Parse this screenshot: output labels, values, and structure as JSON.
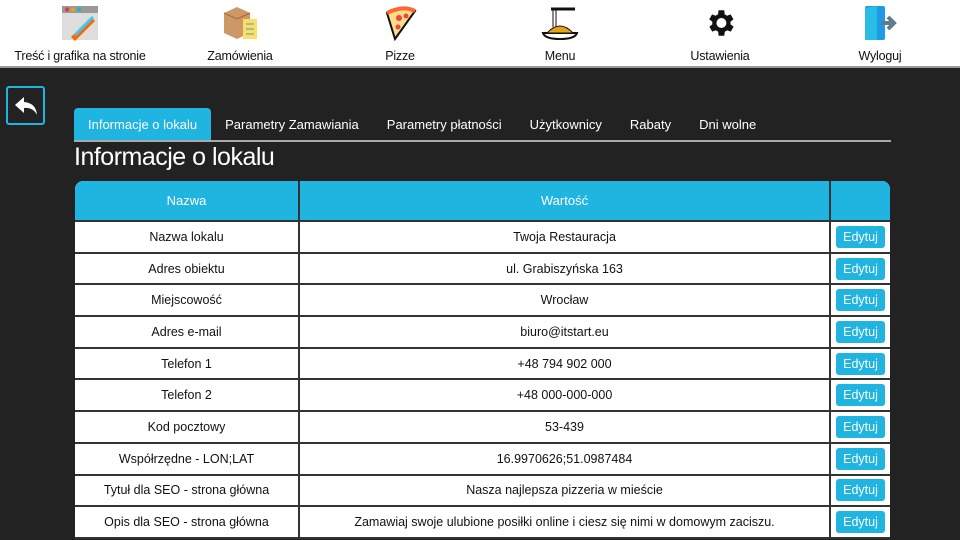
{
  "nav": [
    {
      "label": "Treść i grafika na stronie",
      "icon": "content-graphics-icon"
    },
    {
      "label": "Zamówienia",
      "icon": "orders-box-icon"
    },
    {
      "label": "Pizze",
      "icon": "pizza-icon"
    },
    {
      "label": "Menu",
      "icon": "spaghetti-icon"
    },
    {
      "label": "Ustawienia",
      "icon": "gear-icon"
    },
    {
      "label": "Wyloguj",
      "icon": "logout-door-icon"
    }
  ],
  "tabs": [
    "Informacje o lokalu",
    "Parametry Zamawiania",
    "Parametry płatności",
    "Użytkownicy",
    "Rabaty",
    "Dni wolne"
  ],
  "active_tab": 0,
  "page_title": "Informacje o lokalu",
  "table": {
    "headers": [
      "Nazwa",
      "Wartość",
      ""
    ],
    "edit_label": "Edytuj",
    "rows": [
      [
        "Nazwa lokalu",
        "Twoja Restauracja"
      ],
      [
        "Adres obiektu",
        "ul. Grabiszyńska 163"
      ],
      [
        "Miejscowość",
        "Wrocław"
      ],
      [
        "Adres e-mail",
        "biuro@itstart.eu"
      ],
      [
        "Telefon 1",
        "+48 794 902 000"
      ],
      [
        "Telefon 2",
        "+48 000-000-000"
      ],
      [
        "Kod pocztowy",
        "53-439"
      ],
      [
        "Współrzędne - LON;LAT",
        "16.9970626;51.0987484"
      ],
      [
        "Tytuł dla SEO - strona główna",
        "Nasza najlepsza pizzeria w mieście"
      ],
      [
        "Opis dla SEO - strona główna",
        "Zamawiaj swoje ulubione posiłki online i ciesz się nimi w domowym zaciszu."
      ]
    ]
  },
  "colors": {
    "accent": "#1fb5e0",
    "background": "#222222"
  }
}
